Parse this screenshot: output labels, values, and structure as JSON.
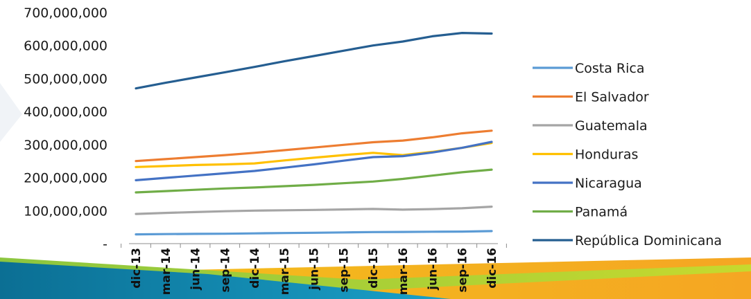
{
  "chart_data": {
    "type": "line",
    "categories": [
      "dic-13",
      "mar-14",
      "jun-14",
      "sep-14",
      "dic-14",
      "mar-15",
      "jun-15",
      "sep-15",
      "dic-15",
      "mar-16",
      "jun-16",
      "sep-16",
      "dic-16"
    ],
    "ylim": [
      0,
      700000000
    ],
    "y_ticks": [
      0,
      100000000,
      200000000,
      300000000,
      400000000,
      500000000,
      600000000,
      700000000
    ],
    "y_tick_labels": [
      "-",
      "100,000,000",
      "200,000,000",
      "300,000,000",
      "400,000,000",
      "500,000,000",
      "600,000,000",
      "700,000,000"
    ],
    "grid": false,
    "legend_position": "right",
    "series": [
      {
        "name": "Costa Rica",
        "color": "#5b9bd5",
        "values": [
          28000000,
          29000000,
          29500000,
          30000000,
          31000000,
          32000000,
          33000000,
          34000000,
          35000000,
          35500000,
          36000000,
          36500000,
          38000000
        ]
      },
      {
        "name": "El Salvador",
        "color": "#ed7d31",
        "values": [
          250000000,
          256000000,
          262000000,
          268000000,
          275000000,
          283000000,
          291000000,
          299000000,
          307000000,
          312000000,
          322000000,
          334000000,
          342000000
        ]
      },
      {
        "name": "Guatemala",
        "color": "#a5a5a5",
        "values": [
          90000000,
          93000000,
          95500000,
          98000000,
          100000000,
          101000000,
          102000000,
          103500000,
          105000000,
          103000000,
          104500000,
          107000000,
          112000000
        ]
      },
      {
        "name": "Honduras",
        "color": "#ffc000",
        "values": [
          232000000,
          235000000,
          238000000,
          240000000,
          243000000,
          252000000,
          260000000,
          268000000,
          275000000,
          268000000,
          278000000,
          290000000,
          305000000
        ]
      },
      {
        "name": "Nicaragua",
        "color": "#4472c4",
        "values": [
          192000000,
          199000000,
          206000000,
          213000000,
          220000000,
          230000000,
          240000000,
          251000000,
          262000000,
          265000000,
          276000000,
          290000000,
          308000000
        ]
      },
      {
        "name": "Panamá",
        "color": "#70ad47",
        "values": [
          155000000,
          159000000,
          163000000,
          167000000,
          170000000,
          174000000,
          178000000,
          183000000,
          188000000,
          196000000,
          206000000,
          216000000,
          224000000
        ]
      },
      {
        "name": "República Dominicana",
        "color": "#255e91",
        "values": [
          470000000,
          487000000,
          503000000,
          519000000,
          535000000,
          552000000,
          568000000,
          584000000,
          600000000,
          612000000,
          628000000,
          638000000,
          636000000
        ]
      }
    ]
  }
}
